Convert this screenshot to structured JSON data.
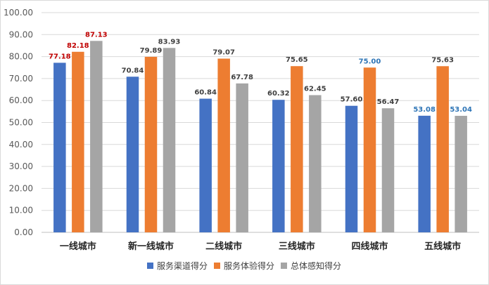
{
  "chart_data": {
    "type": "bar",
    "title": "",
    "xlabel": "",
    "ylabel": "",
    "ylim": [
      0,
      100
    ],
    "yticks": [
      "0.00",
      "10.00",
      "20.00",
      "30.00",
      "40.00",
      "50.00",
      "60.00",
      "70.00",
      "80.00",
      "90.00",
      "100.00"
    ],
    "grid": true,
    "legend_position": "bottom",
    "categories": [
      "一线城市",
      "新一线城市",
      "二线城市",
      "三线城市",
      "四线城市",
      "五线城市"
    ],
    "series": [
      {
        "name": "服务渠道得分",
        "color": "#4472c4",
        "values": [
          77.18,
          70.84,
          60.84,
          60.32,
          57.6,
          53.08
        ],
        "labels": [
          "77.18",
          "70.84",
          "60.84",
          "60.32",
          "57.60",
          "53.08"
        ],
        "label_colors": [
          "#c00000",
          "#404040",
          "#404040",
          "#404040",
          "#404040",
          "#2e75b6"
        ]
      },
      {
        "name": "服务体验得分",
        "color": "#ed7d31",
        "values": [
          82.18,
          79.89,
          79.07,
          75.65,
          75.0,
          75.63
        ],
        "labels": [
          "82.18",
          "79.89",
          "79.07",
          "75.65",
          "75.00",
          "75.63"
        ],
        "label_colors": [
          "#c00000",
          "#404040",
          "#404040",
          "#404040",
          "#2e75b6",
          "#404040"
        ]
      },
      {
        "name": "总体感知得分",
        "color": "#a5a5a5",
        "values": [
          87.13,
          83.93,
          67.78,
          62.45,
          56.47,
          53.04
        ],
        "labels": [
          "87.13",
          "83.93",
          "67.78",
          "62.45",
          "56.47",
          "53.04"
        ],
        "label_colors": [
          "#c00000",
          "#404040",
          "#404040",
          "#404040",
          "#404040",
          "#2e75b6"
        ]
      }
    ]
  }
}
